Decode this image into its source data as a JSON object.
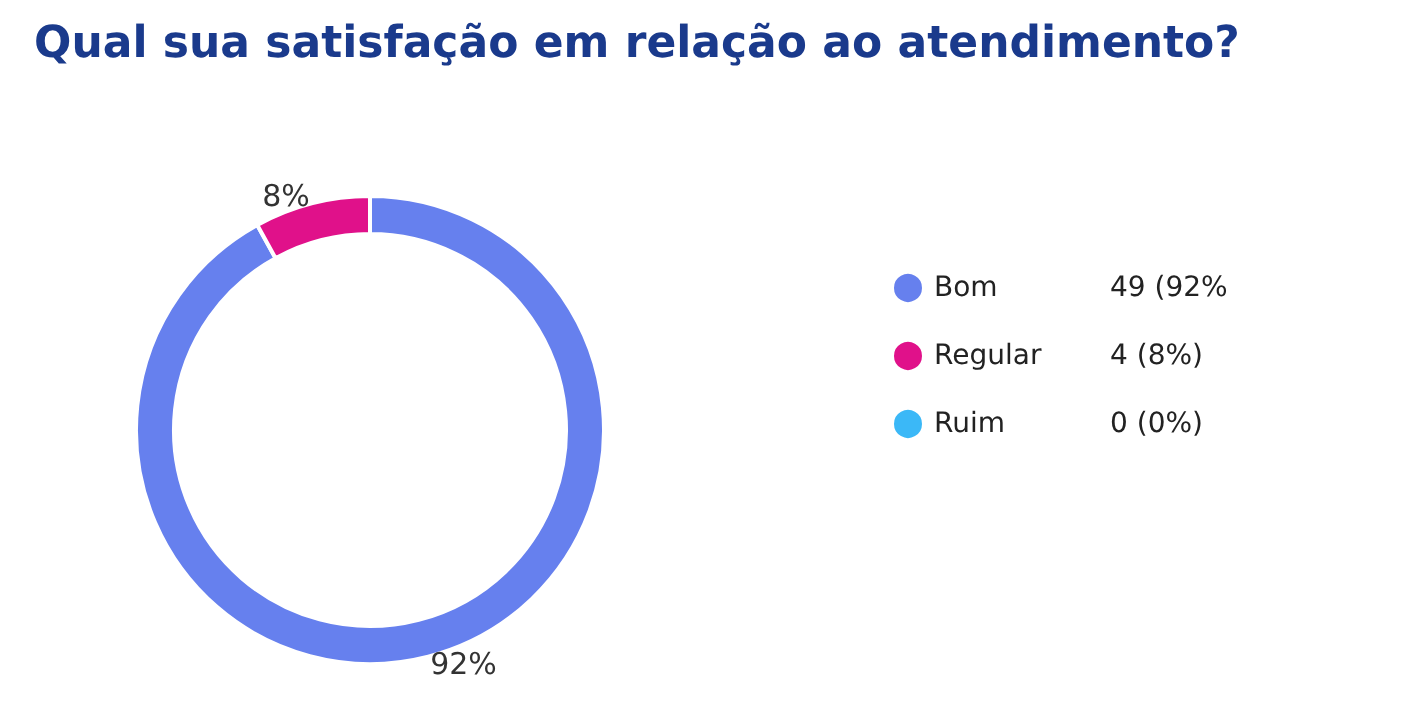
{
  "chart_data": {
    "type": "donut",
    "title": "Qual sua satisfação em relação ao atendimento?",
    "categories": [
      "Bom",
      "Regular",
      "Ruim"
    ],
    "values": [
      92,
      8,
      0
    ],
    "colors": [
      "#6680ee",
      "#e0118a",
      "#3bb8f7"
    ],
    "value_labels": [
      "92%",
      "8%",
      null
    ],
    "annotations": [
      "49 (92%",
      "4 (8%)",
      "0 (0%)"
    ],
    "legend": "right"
  }
}
